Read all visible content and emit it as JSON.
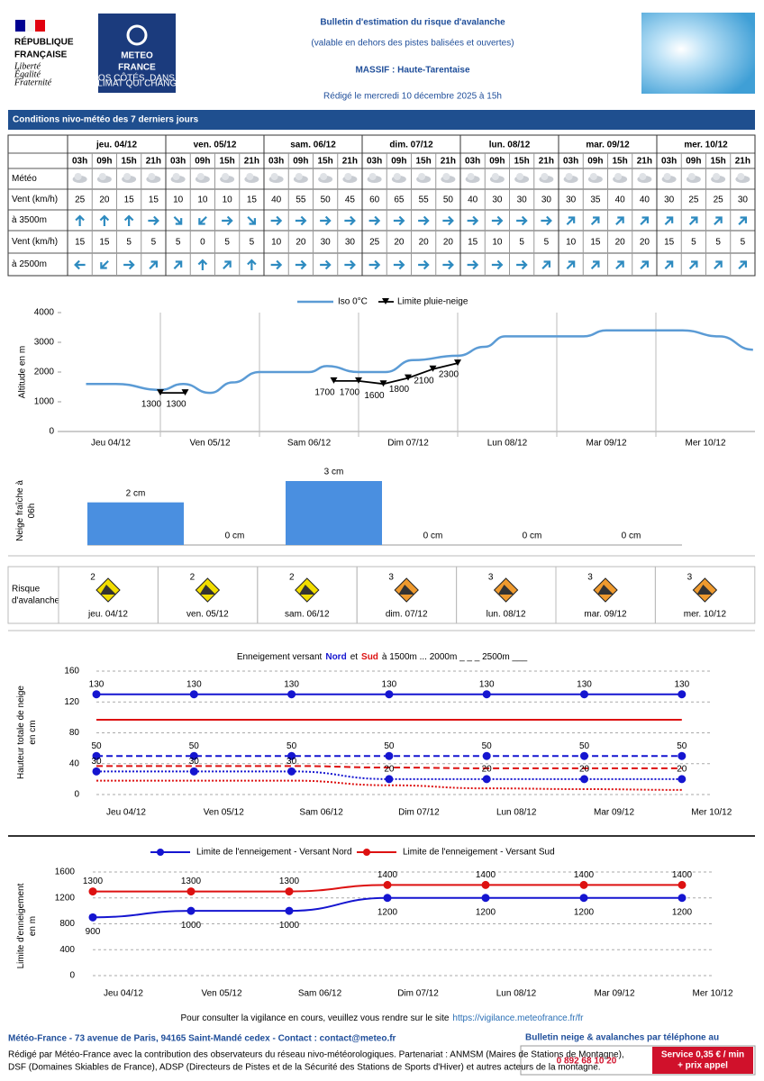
{
  "header": {
    "republic": [
      "RÉPUBLIQUE",
      "FRANÇAISE"
    ],
    "motto": [
      "Liberté",
      "Égalité",
      "Fraternité"
    ],
    "logo": [
      "METEO",
      "FRANCE"
    ],
    "logo_tagline": [
      "À VOS CÔTÉS, DANS UN",
      "CLIMAT QUI CHANGE"
    ],
    "title": "Bulletin d'estimation du risque d'avalanche",
    "subtitle": "(valable en dehors des pistes balisées et ouvertes)",
    "massif": "MASSIF : Haute-Tarentaise",
    "written": "Rédigé le mercredi 10 décembre 2025 à 15h"
  },
  "section_title": "Conditions nivo-météo des 7 derniers jours",
  "table": {
    "days": [
      "jeu. 04/12",
      "ven. 05/12",
      "sam. 06/12",
      "dim. 07/12",
      "lun. 08/12",
      "mar. 09/12",
      "mer. 10/12"
    ],
    "hours": [
      "03h",
      "09h",
      "15h",
      "21h"
    ],
    "row_labels": [
      "Météo",
      "Vent (km/h)",
      "à 3500m",
      "Vent (km/h)",
      "à 2500m"
    ],
    "wind_3500": [
      [
        25,
        20,
        15,
        15
      ],
      [
        10,
        10,
        10,
        15
      ],
      [
        40,
        55,
        50,
        45
      ],
      [
        60,
        65,
        55,
        50
      ],
      [
        40,
        30,
        30,
        30
      ],
      [
        30,
        35,
        40,
        40
      ],
      [
        30,
        25,
        25,
        30
      ]
    ],
    "dir_3500": [
      [
        0,
        0,
        0,
        90
      ],
      [
        135,
        225,
        90,
        135
      ],
      [
        90,
        90,
        90,
        90
      ],
      [
        90,
        90,
        90,
        90
      ],
      [
        90,
        90,
        90,
        90
      ],
      [
        45,
        45,
        45,
        45
      ],
      [
        45,
        45,
        45,
        45
      ]
    ],
    "wind_2500": [
      [
        15,
        15,
        5,
        5
      ],
      [
        5,
        0,
        5,
        5
      ],
      [
        10,
        20,
        30,
        30
      ],
      [
        25,
        20,
        20,
        20
      ],
      [
        15,
        10,
        5,
        5
      ],
      [
        10,
        15,
        20,
        20
      ],
      [
        15,
        5,
        5,
        5
      ]
    ],
    "dir_2500": [
      [
        270,
        225,
        90,
        45
      ],
      [
        45,
        0,
        45,
        0
      ],
      [
        90,
        90,
        90,
        90
      ],
      [
        90,
        90,
        90,
        90
      ],
      [
        90,
        90,
        90,
        45
      ],
      [
        45,
        45,
        45,
        45
      ],
      [
        45,
        45,
        45,
        45
      ]
    ]
  },
  "risk": {
    "label": [
      "Risque",
      "d'avalanche"
    ],
    "levels": [
      2,
      2,
      2,
      3,
      3,
      3,
      3
    ],
    "days": [
      "jeu. 04/12",
      "ven. 05/12",
      "sam. 06/12",
      "dim. 07/12",
      "lun. 08/12",
      "mar. 09/12",
      "mer. 10/12"
    ],
    "colors": [
      "#f2dd00",
      "#f2dd00",
      "#f2dd00",
      "#ef9a2e",
      "#ef9a2e",
      "#ef9a2e",
      "#ef9a2e"
    ]
  },
  "chart_data": [
    {
      "type": "line",
      "y_label": "Altitude en m",
      "categories": [
        "Jeu 04/12",
        "Ven 05/12",
        "Sam 06/12",
        "Dim 07/12",
        "Lun 08/12",
        "Mar 09/12",
        "Mer 10/12"
      ],
      "xlim": [
        0,
        7
      ],
      "ylim": [
        0,
        4000
      ],
      "yticks": [
        0,
        1000,
        2000,
        3000,
        4000
      ],
      "series": [
        {
          "name": "Iso 0°C",
          "color": "#5b9bd5",
          "x": [
            0.25,
            0.55,
            1.0,
            1.23,
            1.5,
            1.73,
            2.0,
            2.5,
            2.68,
            3.0,
            3.27,
            3.55,
            4.0,
            4.27,
            4.48,
            5.27,
            5.5,
            6.27,
            6.64,
            6.98
          ],
          "values": [
            1600,
            1600,
            1400,
            1600,
            1300,
            1650,
            2000,
            2000,
            2200,
            2000,
            2000,
            2400,
            2550,
            2850,
            3200,
            3200,
            3400,
            3400,
            3200,
            2750
          ]
        },
        {
          "name": "Limite pluie-neige",
          "color": "#000000",
          "x": [
            1.0,
            1.25,
            null,
            2.75,
            3.0,
            3.25,
            3.5,
            3.75,
            4.0
          ],
          "values": [
            1300,
            1300,
            null,
            1700,
            1700,
            1600,
            1800,
            2100,
            2300
          ],
          "data_labels": true
        }
      ]
    },
    {
      "type": "bar",
      "y_label": [
        "Neige fraîche à",
        "06h"
      ],
      "values": [
        2,
        0,
        3,
        0,
        0,
        0
      ],
      "value_labels": [
        "2 cm",
        "0 cm",
        "3 cm",
        "0 cm",
        "0 cm",
        "0 cm"
      ],
      "color": "#4a8fe0"
    },
    {
      "type": "line",
      "title_parts": [
        "Enneigement versant",
        "Nord",
        "et",
        "Sud",
        "à  1500m ...  2000m _ _ _  2500m ___"
      ],
      "title_colors": [
        "#000000",
        "#1515d0",
        "#000000",
        "#dd1111",
        "#000000"
      ],
      "y_label": [
        "Hauteur totale de neige",
        "en cm"
      ],
      "categories": [
        "Jeu 04/12",
        "Ven 05/12",
        "Sam 06/12",
        "Dim 07/12",
        "Lun 08/12",
        "Mar 09/12",
        "Mer 10/12"
      ],
      "ylim": [
        0,
        160
      ],
      "yticks": [
        0,
        40,
        80,
        120,
        160
      ],
      "grid": true,
      "series": [
        {
          "color": "#dd1111",
          "style": "solid",
          "values": [
            97,
            97,
            97,
            97,
            97,
            97,
            97
          ]
        },
        {
          "color": "#dd1111",
          "style": "dashed",
          "values": [
            37,
            37,
            37,
            35,
            34,
            34,
            34
          ]
        },
        {
          "color": "#dd1111",
          "style": "dotted",
          "values": [
            18,
            18,
            18,
            12,
            8,
            7,
            6
          ]
        },
        {
          "color": "#1515d0",
          "style": "solid",
          "markers": true,
          "data_labels": true,
          "values": [
            130,
            130,
            130,
            130,
            130,
            130,
            130
          ]
        },
        {
          "color": "#1515d0",
          "style": "dashed",
          "markers": true,
          "data_labels": true,
          "values": [
            50,
            50,
            50,
            50,
            50,
            50,
            50
          ]
        },
        {
          "color": "#1515d0",
          "style": "dotted",
          "markers": true,
          "data_labels": true,
          "values": [
            30,
            30,
            30,
            20,
            20,
            20,
            20
          ]
        }
      ]
    },
    {
      "type": "line",
      "y_label": [
        "Limite d'enneigement",
        "en m"
      ],
      "categories": [
        "Jeu 04/12",
        "Ven 05/12",
        "Sam 06/12",
        "Dim 07/12",
        "Lun 08/12",
        "Mar 09/12",
        "Mer 10/12"
      ],
      "ylim": [
        0,
        1600
      ],
      "yticks": [
        0,
        400,
        800,
        1200,
        1600
      ],
      "grid": true,
      "series": [
        {
          "name": "Limite de l'enneigement - Versant Nord",
          "color": "#1515d0",
          "markers": true,
          "data_labels": true,
          "label_position": "below",
          "values": [
            900,
            1000,
            1000,
            1200,
            1200,
            1200,
            1200
          ]
        },
        {
          "name": "Limite de l'enneigement - Versant Sud",
          "color": "#dd1111",
          "markers": true,
          "data_labels": true,
          "label_position": "above",
          "values": [
            1300,
            1300,
            1300,
            1400,
            1400,
            1400,
            1400
          ]
        }
      ]
    }
  ],
  "footer": {
    "vigilance": "Pour consulter la vigilance en cours, veuillez vous rendre sur le site",
    "vigilance_url": "https://vigilance.meteofrance.fr/fr",
    "address": "Météo-France - 73 avenue de Paris, 94165 Saint-Mandé cedex - Contact : contact@meteo.fr",
    "credits": [
      "Rédigé par Météo-France avec la contribution des observateurs du réseau nivo-météorologiques. Partenariat : ANMSM (Maires de Stations de Montagne),",
      "DSF (Domaines Skiables de France), ADSP (Directeurs de Pistes et de la Sécurité des Stations de Sports d'Hiver) et autres acteurs de la montagne."
    ],
    "phone_title": "Bulletin neige & avalanches par téléphone au",
    "phone": "0 892 68 10 20",
    "price": [
      "Service 0,35 € / min",
      "+ prix appel"
    ]
  }
}
